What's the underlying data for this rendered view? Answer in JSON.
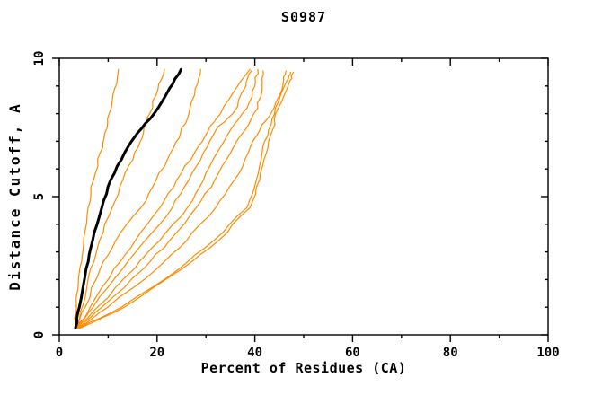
{
  "page": {
    "background": "#ffffff",
    "frame_color": "#000000",
    "accent_orange": "#ff8c00"
  },
  "chart_data": {
    "type": "line",
    "title": "S0987",
    "xlabel": "Percent of Residues (CA)",
    "ylabel": "Distance Cutoff, A",
    "xlim": [
      0,
      100
    ],
    "ylim": [
      0,
      10
    ],
    "grid": false,
    "legend": "none",
    "x_major_ticks": [
      0,
      20,
      40,
      60,
      80,
      100
    ],
    "x_major_tick_labels": [
      "0",
      "20",
      "40",
      "60",
      "80",
      "100"
    ],
    "x_minor_step": 10,
    "y_major_ticks": [
      0,
      5,
      10
    ],
    "y_major_tick_labels": [
      "0",
      "5",
      "10"
    ],
    "y_minor_step": 1,
    "series": [
      {
        "id": "model-1",
        "color": "#ff8c00",
        "width": 1.2,
        "points": [
          [
            3.2,
            0.25
          ],
          [
            3.5,
            1
          ],
          [
            4.2,
            2.4
          ],
          [
            5.0,
            3.5
          ],
          [
            5.9,
            4.6
          ],
          [
            7.0,
            5.6
          ],
          [
            8.4,
            6.6
          ],
          [
            9.3,
            7.3
          ],
          [
            10.2,
            8.0
          ],
          [
            11.3,
            8.9
          ],
          [
            12.1,
            9.6
          ]
        ]
      },
      {
        "id": "model-2",
        "color": "#ff8c00",
        "width": 1.2,
        "points": [
          [
            3.4,
            0.25
          ],
          [
            4.7,
            1
          ],
          [
            6.4,
            2.4
          ],
          [
            8.2,
            3.4
          ],
          [
            10.8,
            4.6
          ],
          [
            13.0,
            5.6
          ],
          [
            15.4,
            6.6
          ],
          [
            17.2,
            7.3
          ],
          [
            18.5,
            8.0
          ],
          [
            20.2,
            8.9
          ],
          [
            21.5,
            9.6
          ]
        ]
      },
      {
        "id": "model-3",
        "color": "#ff8c00",
        "width": 1.2,
        "points": [
          [
            3.6,
            0.25
          ],
          [
            5.3,
            1
          ],
          [
            8.4,
            2.4
          ],
          [
            11.5,
            3.4
          ],
          [
            16.7,
            4.6
          ],
          [
            19.8,
            5.6
          ],
          [
            22.8,
            6.6
          ],
          [
            24.8,
            7.3
          ],
          [
            26.5,
            8.0
          ],
          [
            27.8,
            8.9
          ],
          [
            28.9,
            9.6
          ]
        ]
      },
      {
        "id": "model-4",
        "color": "#ff8c00",
        "width": 1.2,
        "points": [
          [
            3.7,
            0.25
          ],
          [
            6.3,
            1
          ],
          [
            11.2,
            2.4
          ],
          [
            15.5,
            3.4
          ],
          [
            20.6,
            4.6
          ],
          [
            24.0,
            5.6
          ],
          [
            27.7,
            6.6
          ],
          [
            30.5,
            7.4
          ],
          [
            33.0,
            8.0
          ],
          [
            36.5,
            9.0
          ],
          [
            39.0,
            9.6
          ]
        ]
      },
      {
        "id": "model-5",
        "color": "#ff8c00",
        "width": 1.2,
        "points": [
          [
            3.8,
            0.25
          ],
          [
            6.9,
            1
          ],
          [
            13.0,
            2.4
          ],
          [
            17.5,
            3.4
          ],
          [
            23.1,
            4.6
          ],
          [
            26.5,
            5.6
          ],
          [
            29.5,
            6.6
          ],
          [
            32.0,
            7.4
          ],
          [
            35.5,
            8.0
          ],
          [
            38.2,
            9.0
          ],
          [
            39.3,
            9.55
          ]
        ]
      },
      {
        "id": "model-6",
        "color": "#ff8c00",
        "width": 1.2,
        "points": [
          [
            3.9,
            0.25
          ],
          [
            7.8,
            1
          ],
          [
            15.4,
            2.4
          ],
          [
            20.5,
            3.4
          ],
          [
            26.2,
            4.6
          ],
          [
            29.5,
            5.6
          ],
          [
            32.3,
            6.6
          ],
          [
            35.0,
            7.4
          ],
          [
            38.4,
            8.2
          ],
          [
            40.0,
            9.0
          ],
          [
            40.6,
            9.6
          ]
        ]
      },
      {
        "id": "model-7",
        "color": "#ff8c00",
        "width": 1.2,
        "points": [
          [
            4.0,
            0.25
          ],
          [
            8.7,
            1
          ],
          [
            17.3,
            2.4
          ],
          [
            22.5,
            3.4
          ],
          [
            28.0,
            4.6
          ],
          [
            31.8,
            5.6
          ],
          [
            35.1,
            6.6
          ],
          [
            38.0,
            7.4
          ],
          [
            40.6,
            8.2
          ],
          [
            41.5,
            9.0
          ],
          [
            41.7,
            9.55
          ]
        ]
      },
      {
        "id": "model-8",
        "color": "#ff8c00",
        "width": 1.2,
        "points": [
          [
            4.1,
            0.25
          ],
          [
            9.9,
            1
          ],
          [
            20.0,
            2.4
          ],
          [
            26.0,
            3.4
          ],
          [
            32.0,
            4.6
          ],
          [
            35.8,
            5.6
          ],
          [
            38.7,
            6.6
          ],
          [
            41.0,
            7.4
          ],
          [
            43.9,
            8.2
          ],
          [
            45.8,
            9.1
          ],
          [
            46.4,
            9.55
          ]
        ]
      },
      {
        "id": "model-9",
        "color": "#ff8c00",
        "width": 1.2,
        "points": [
          [
            4.2,
            0.25
          ],
          [
            12.7,
            1
          ],
          [
            24.6,
            2.4
          ],
          [
            31.5,
            3.4
          ],
          [
            38.4,
            4.6
          ],
          [
            40.3,
            5.6
          ],
          [
            41.5,
            6.6
          ],
          [
            42.8,
            7.4
          ],
          [
            44.2,
            8.2
          ],
          [
            46.6,
            9.2
          ],
          [
            47.3,
            9.5
          ]
        ]
      },
      {
        "id": "model-10",
        "color": "#ff8c00",
        "width": 1.2,
        "points": [
          [
            4.3,
            0.25
          ],
          [
            13.3,
            1
          ],
          [
            25.2,
            2.4
          ],
          [
            32.5,
            3.4
          ],
          [
            39.0,
            4.6
          ],
          [
            41.0,
            5.6
          ],
          [
            42.4,
            6.6
          ],
          [
            43.6,
            7.4
          ],
          [
            44.8,
            8.2
          ],
          [
            47.2,
            9.2
          ],
          [
            47.9,
            9.5
          ]
        ]
      },
      {
        "id": "reference-model",
        "color": "#000000",
        "width": 3,
        "points": [
          [
            3.3,
            0.25
          ],
          [
            4.1,
            1
          ],
          [
            5.5,
            2.4
          ],
          [
            6.8,
            3.4
          ],
          [
            8.7,
            4.6
          ],
          [
            10.5,
            5.6
          ],
          [
            13.4,
            6.6
          ],
          [
            16.0,
            7.3
          ],
          [
            19.4,
            8.0
          ],
          [
            22.5,
            8.9
          ],
          [
            24.9,
            9.6
          ]
        ]
      }
    ]
  }
}
